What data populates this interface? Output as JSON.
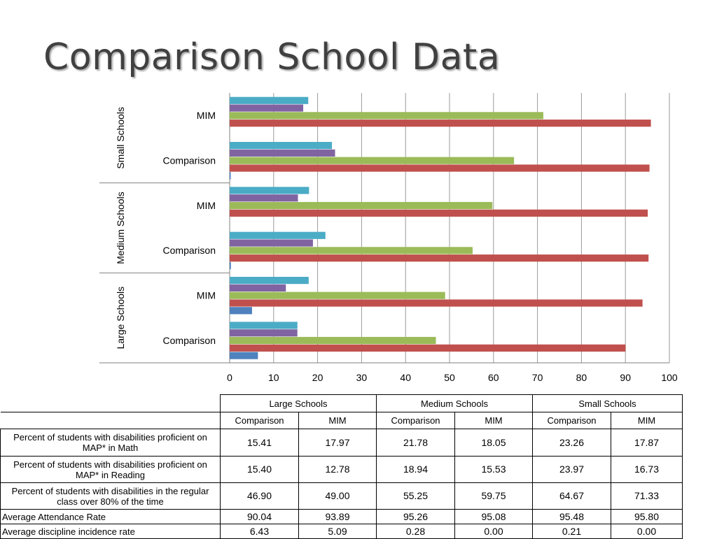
{
  "slide": {
    "title": "Comparison School Data"
  },
  "chart_data": {
    "type": "bar",
    "orientation": "horizontal",
    "xlim": [
      0,
      100
    ],
    "xticks": [
      0,
      10,
      20,
      30,
      40,
      50,
      60,
      70,
      80,
      90,
      100
    ],
    "grid": true,
    "groups": [
      "Large Schools",
      "Medium Schools",
      "Small Schools"
    ],
    "categories": [
      "Comparison",
      "MIM"
    ],
    "series": [
      {
        "color": "#4f81bd",
        "values": {
          "Large Schools": [
            6.43,
            5.09
          ],
          "Medium Schools": [
            0.28,
            0.0
          ],
          "Small Schools": [
            0.21,
            0.0
          ]
        }
      },
      {
        "color": "#c0504d",
        "values": {
          "Large Schools": [
            90.04,
            93.89
          ],
          "Medium Schools": [
            95.26,
            95.08
          ],
          "Small Schools": [
            95.48,
            95.8
          ]
        }
      },
      {
        "color": "#9bbb59",
        "values": {
          "Large Schools": [
            46.9,
            49.0
          ],
          "Medium Schools": [
            55.25,
            59.75
          ],
          "Small Schools": [
            64.67,
            71.33
          ]
        }
      },
      {
        "color": "#8064a2",
        "values": {
          "Large Schools": [
            15.4,
            12.78
          ],
          "Medium Schools": [
            18.94,
            15.53
          ],
          "Small Schools": [
            23.97,
            16.73
          ]
        }
      },
      {
        "color": "#4bacc6",
        "values": {
          "Large Schools": [
            15.41,
            17.97
          ],
          "Medium Schools": [
            21.78,
            18.05
          ],
          "Small Schools": [
            23.26,
            17.87
          ]
        }
      }
    ]
  },
  "table": {
    "groups": [
      "Large Schools",
      "Medium Schools",
      "Small Schools"
    ],
    "subheaders": [
      "Comparison",
      "MIM",
      "Comparison",
      "MIM",
      "Comparison",
      "MIM"
    ],
    "rows": [
      {
        "label": "Percent of students with disabilities proficient on MAP* in Math",
        "values": [
          "15.41",
          "17.97",
          "21.78",
          "18.05",
          "23.26",
          "17.87"
        ]
      },
      {
        "label": "Percent of students with disabilities proficient on MAP* in Reading",
        "values": [
          "15.40",
          "12.78",
          "18.94",
          "15.53",
          "23.97",
          "16.73"
        ]
      },
      {
        "label": "Percent of students with disabilities in the regular class over 80% of the time",
        "values": [
          "46.90",
          "49.00",
          "55.25",
          "59.75",
          "64.67",
          "71.33"
        ]
      },
      {
        "label": "Average Attendance Rate",
        "values": [
          "90.04",
          "93.89",
          "95.26",
          "95.08",
          "95.48",
          "95.80"
        ]
      },
      {
        "label": "Average discipline incidence rate",
        "values": [
          "6.43",
          "5.09",
          "0.28",
          "0.00",
          "0.21",
          "0.00"
        ]
      }
    ]
  }
}
